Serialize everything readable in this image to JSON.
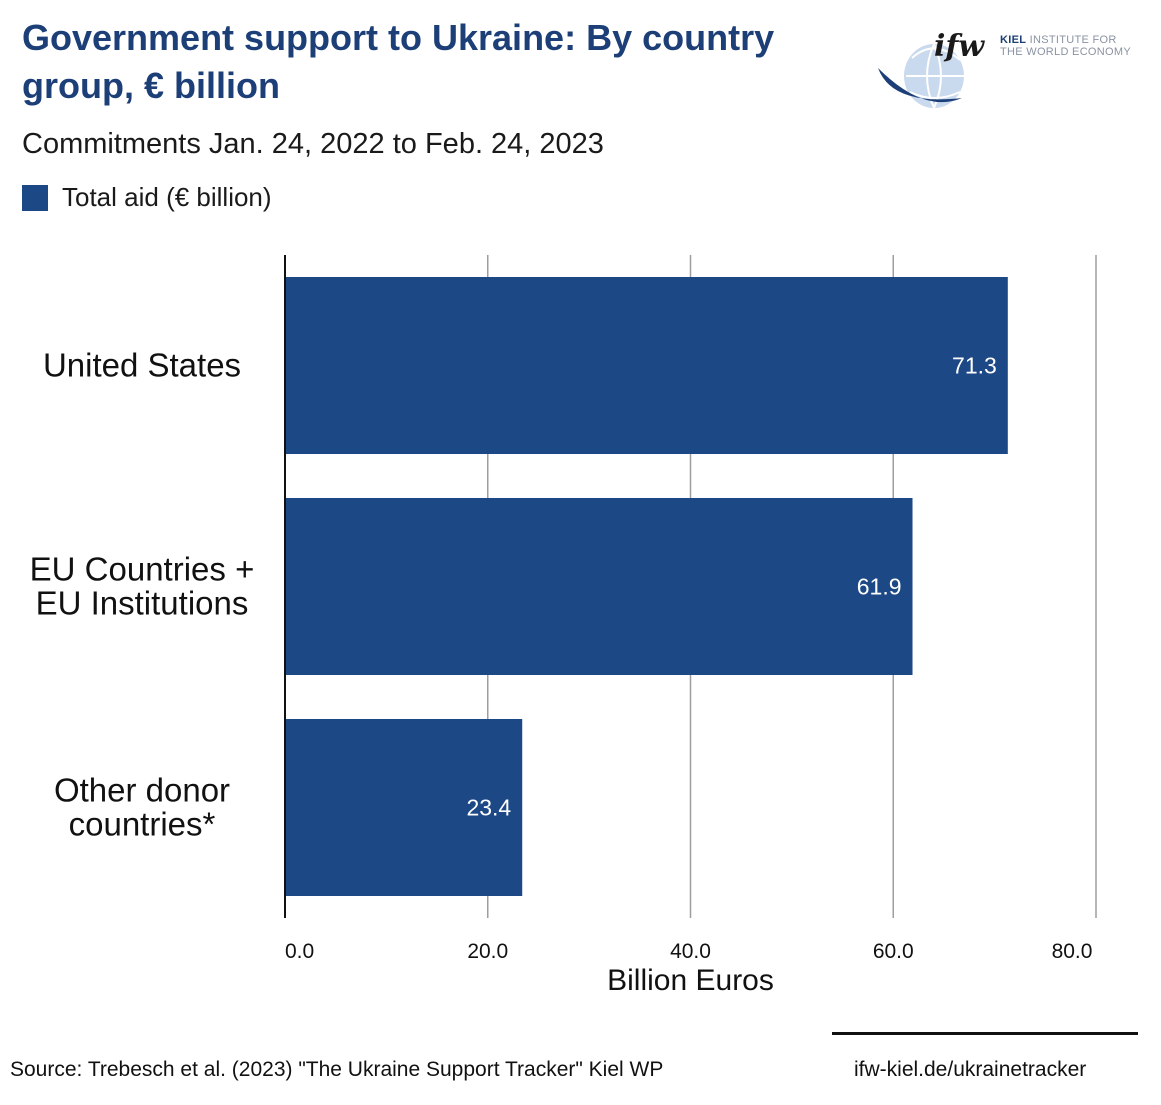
{
  "header": {
    "title": "Government support to Ukraine: By country group, € billion",
    "subtitle": "Commitments Jan. 24, 2022 to Feb. 24, 2023",
    "legend_label": "Total aid (€ billion)"
  },
  "logo": {
    "mark": "ifw",
    "line1_bold": "KIEL",
    "line1_rest": " INSTITUTE FOR",
    "line2": "THE WORLD ECONOMY"
  },
  "colors": {
    "title": "#1d3f77",
    "bar": "#1d4886",
    "grid": "#9e9e9e",
    "axis": "#111111",
    "bar_label": "#ffffff"
  },
  "chart_data": {
    "type": "bar",
    "orientation": "horizontal",
    "title": "Government support to Ukraine: By country group, € billion",
    "subtitle": "Commitments Jan. 24, 2022 to Feb. 24, 2023",
    "categories": [
      [
        "United States"
      ],
      [
        "EU Countries +",
        "EU Institutions"
      ],
      [
        "Other donor",
        "countries*"
      ]
    ],
    "series": [
      {
        "name": "Total aid (€ billion)",
        "values": [
          71.3,
          61.9,
          23.4
        ],
        "labels": [
          "71.3",
          "61.9",
          "23.4"
        ]
      }
    ],
    "xlabel": "Billion Euros",
    "ylabel": "",
    "xlim": [
      0,
      80
    ],
    "xticks": [
      0,
      20,
      40,
      60,
      80
    ],
    "xtick_labels": [
      "0.0",
      "20.0",
      "40.0",
      "60.0",
      "80.0"
    ],
    "grid": true,
    "legend": "top-left"
  },
  "footer": {
    "source": "Source: Trebesch et al. (2023) \"The Ukraine Support Tracker\" Kiel WP",
    "site": "ifw-kiel.de/ukrainetracker"
  }
}
